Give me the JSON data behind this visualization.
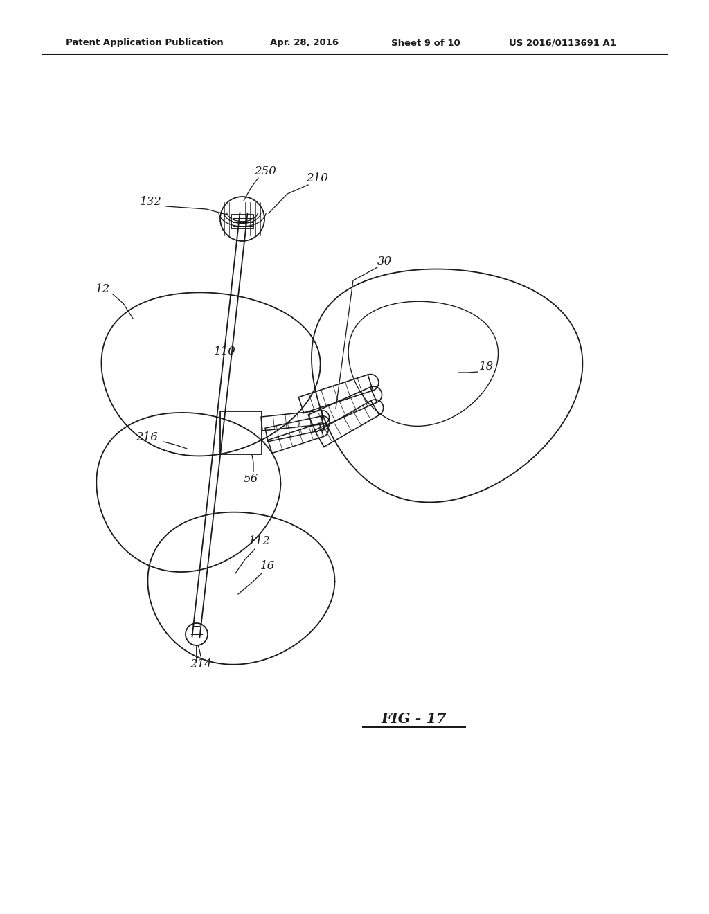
{
  "bg_color": "#ffffff",
  "line_color": "#1a1a1a",
  "header_text": "Patent Application Publication",
  "header_date": "Apr. 28, 2016",
  "header_sheet": "Sheet 9 of 10",
  "header_patent": "US 2016/0113691 A1",
  "fig_label": "FIG - 17"
}
